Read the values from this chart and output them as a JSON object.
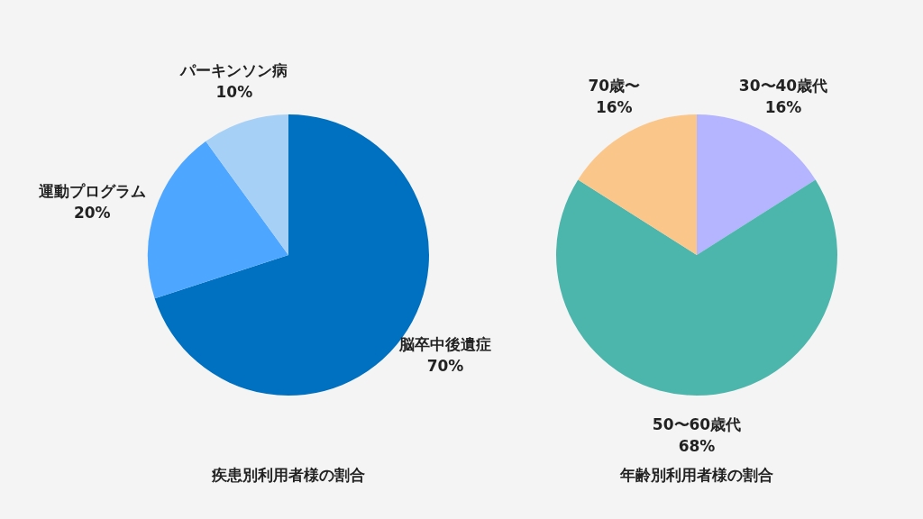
{
  "chart_data": [
    {
      "type": "pie",
      "title": "疾患別利用者様の割合",
      "categories": [
        "脳卒中後遺症",
        "運動プログラム",
        "パーキンソン病"
      ],
      "values": [
        70,
        20,
        10
      ],
      "colors": [
        "#0070c0",
        "#4da6ff",
        "#a6d0f5"
      ],
      "value_labels": [
        "70%",
        "20%",
        "10%"
      ],
      "legend": false
    },
    {
      "type": "pie",
      "title": "年齢別利用者様の割合",
      "categories": [
        "30〜40歳代",
        "50〜60歳代",
        "70歳〜"
      ],
      "values": [
        16,
        68,
        16
      ],
      "colors": [
        "#b4b4ff",
        "#4db6ac",
        "#fac68a"
      ],
      "value_labels": [
        "16%",
        "68%",
        "16%"
      ],
      "legend": false
    }
  ]
}
